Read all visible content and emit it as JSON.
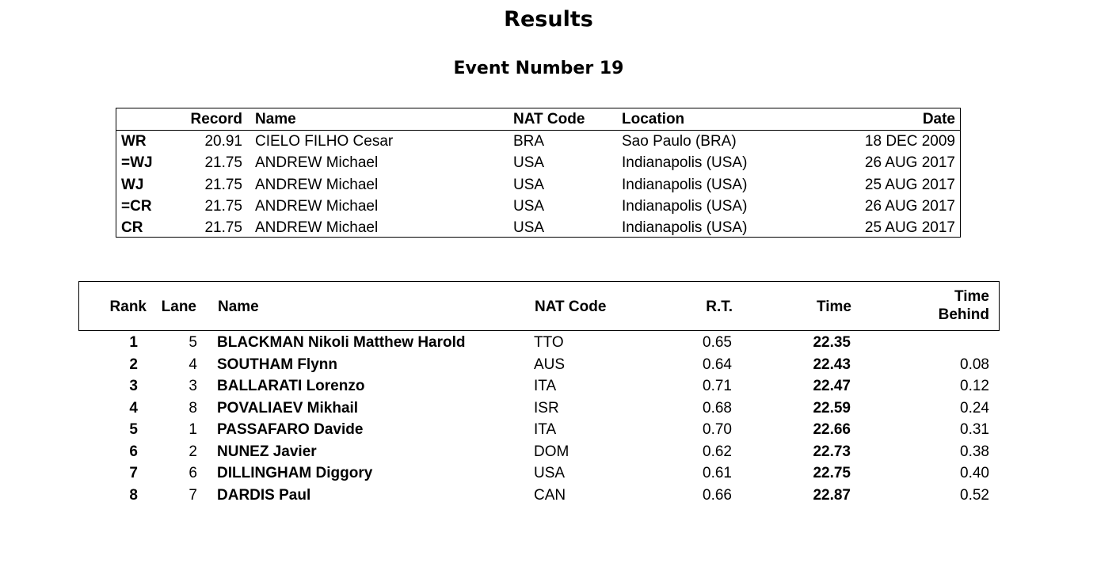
{
  "title": "Results",
  "event": "Event Number 19",
  "records": {
    "headers": {
      "code": "",
      "record": "Record",
      "name": "Name",
      "nat": "NAT Code",
      "location": "Location",
      "date": "Date"
    },
    "rows": [
      {
        "code": "WR",
        "record": "20.91",
        "name": "CIELO FILHO Cesar",
        "nat": "BRA",
        "location": "Sao Paulo (BRA)",
        "date": "18 DEC 2009"
      },
      {
        "code": "=WJ",
        "record": "21.75",
        "name": "ANDREW Michael",
        "nat": "USA",
        "location": "Indianapolis (USA)",
        "date": "26 AUG 2017"
      },
      {
        "code": "WJ",
        "record": "21.75",
        "name": "ANDREW Michael",
        "nat": "USA",
        "location": "Indianapolis (USA)",
        "date": "25 AUG 2017"
      },
      {
        "code": "=CR",
        "record": "21.75",
        "name": "ANDREW Michael",
        "nat": "USA",
        "location": "Indianapolis (USA)",
        "date": "26 AUG 2017"
      },
      {
        "code": "CR",
        "record": "21.75",
        "name": "ANDREW Michael",
        "nat": "USA",
        "location": "Indianapolis (USA)",
        "date": "25 AUG 2017"
      }
    ]
  },
  "results": {
    "headers": {
      "rank": "Rank",
      "lane": "Lane",
      "name": "Name",
      "nat": "NAT Code",
      "rt": "R.T.",
      "time": "Time",
      "behind_line1": "Time",
      "behind_line2": "Behind"
    },
    "rows": [
      {
        "rank": "1",
        "lane": "5",
        "name": "BLACKMAN Nikoli Matthew Harold",
        "nat": "TTO",
        "rt": "0.65",
        "time": "22.35",
        "behind": ""
      },
      {
        "rank": "2",
        "lane": "4",
        "name": "SOUTHAM Flynn",
        "nat": "AUS",
        "rt": "0.64",
        "time": "22.43",
        "behind": "0.08"
      },
      {
        "rank": "3",
        "lane": "3",
        "name": "BALLARATI Lorenzo",
        "nat": "ITA",
        "rt": "0.71",
        "time": "22.47",
        "behind": "0.12"
      },
      {
        "rank": "4",
        "lane": "8",
        "name": "POVALIAEV Mikhail",
        "nat": "ISR",
        "rt": "0.68",
        "time": "22.59",
        "behind": "0.24"
      },
      {
        "rank": "5",
        "lane": "1",
        "name": "PASSAFARO Davide",
        "nat": "ITA",
        "rt": "0.70",
        "time": "22.66",
        "behind": "0.31"
      },
      {
        "rank": "6",
        "lane": "2",
        "name": "NUNEZ Javier",
        "nat": "DOM",
        "rt": "0.62",
        "time": "22.73",
        "behind": "0.38"
      },
      {
        "rank": "7",
        "lane": "6",
        "name": "DILLINGHAM Diggory",
        "nat": "USA",
        "rt": "0.61",
        "time": "22.75",
        "behind": "0.40"
      },
      {
        "rank": "8",
        "lane": "7",
        "name": "DARDIS Paul",
        "nat": "CAN",
        "rt": "0.66",
        "time": "22.87",
        "behind": "0.52"
      }
    ]
  }
}
